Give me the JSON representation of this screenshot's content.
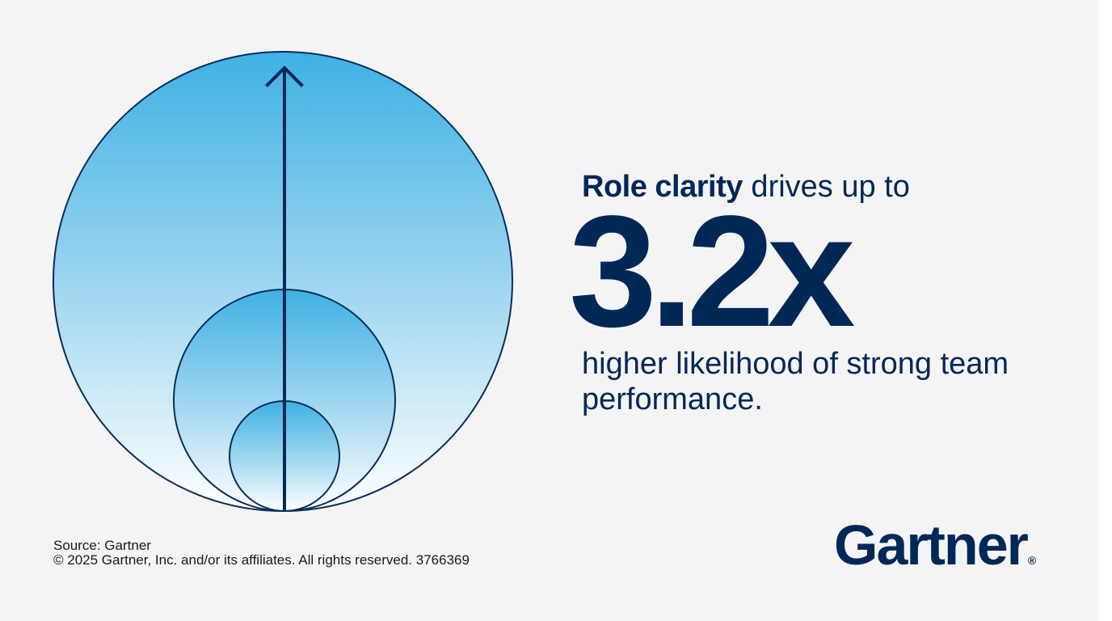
{
  "headline": {
    "bold": "Role clarity",
    "rest": " drives up to"
  },
  "stat": {
    "value": "3.2x"
  },
  "caption": "higher likelihood of strong team performance.",
  "footer": {
    "source": "Source: Gartner",
    "copyright": "© 2025 Gartner, Inc. and/or its affiliates. All rights reserved. 3766369"
  },
  "logo": {
    "text": "Gartner",
    "reg": "®"
  },
  "colors": {
    "navy": "#002856",
    "circle_top": "#3eb1e3",
    "circle_bottom": "#ffffff",
    "background": "#f4f4f4"
  },
  "icons": [
    "growth-arrow-icon",
    "nested-circles-graphic"
  ]
}
